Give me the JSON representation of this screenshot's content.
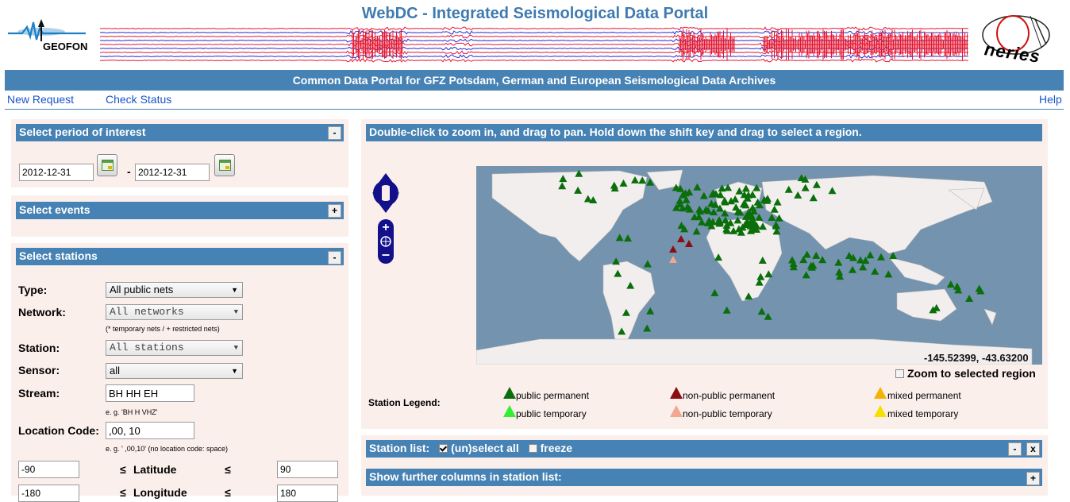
{
  "header": {
    "title": "WebDC - Integrated Seismological Data Portal",
    "subtitle": "Common Data Portal for GFZ Potsdam, German and European Seismological Data Archives",
    "geofon_logo_text": "GEOFON",
    "neries_logo_text": "neries"
  },
  "nav": {
    "new_request": "New Request",
    "check_status": "Check Status",
    "help": "Help"
  },
  "period_panel": {
    "title": "Select period of interest",
    "toggle": "-",
    "start_date": "2012-12-31",
    "separator": "-",
    "end_date": "2012-12-31"
  },
  "events_panel": {
    "title": "Select events",
    "toggle": "+"
  },
  "stations_panel": {
    "title": "Select stations",
    "toggle": "-",
    "type_label": "Type:",
    "type_value": "All public nets",
    "network_label": "Network:",
    "network_value": "All networks",
    "network_hint": "(* temporary nets / + restricted nets)",
    "station_label": "Station:",
    "station_value": "All stations",
    "sensor_label": "Sensor:",
    "sensor_value": "all",
    "stream_label": "Stream:",
    "stream_value": "BH HH EH",
    "stream_hint": "e. g. 'BH H VHZ'",
    "location_label": "Location Code:",
    "location_value": ",00, 10",
    "location_hint": "e. g. ' ,00,10' (no location code: space)",
    "lat_min": "-90",
    "lat_le1": "≤",
    "lat_label": "Latitude",
    "lat_le2": "≤",
    "lat_max": "90",
    "lon_min": "-180",
    "lon_le1": "≤",
    "lon_label": "Longitude",
    "lon_le2": "≤",
    "lon_max": "180"
  },
  "map": {
    "hint": "Double-click to zoom in, and drag to pan. Hold down the shift key and drag to select a region.",
    "coords": "-145.52399, -43.63200",
    "zoom_selected": "Zoom to selected region",
    "ocean_color": "#7393ae",
    "land_color": "#f2eeee",
    "station_color": "#0a6e0a"
  },
  "legend": {
    "title": "Station Legend:",
    "items": [
      {
        "label": "public permanent",
        "color": "#0a6e0a"
      },
      {
        "label": "non-public permanent",
        "color": "#8b0d12"
      },
      {
        "label": "mixed permanent",
        "color": "#f2b400"
      },
      {
        "label": "public temporary",
        "color": "#33ee33"
      },
      {
        "label": "non-public temporary",
        "color": "#f2a890"
      },
      {
        "label": "mixed temporary",
        "color": "#f5e000"
      }
    ]
  },
  "station_list": {
    "title": "Station list:",
    "unselect_all": "(un)select all",
    "freeze": "freeze",
    "btn_minus": "-",
    "btn_close": "x"
  },
  "further_columns": {
    "title": "Show further columns in station list:",
    "toggle": "+"
  }
}
